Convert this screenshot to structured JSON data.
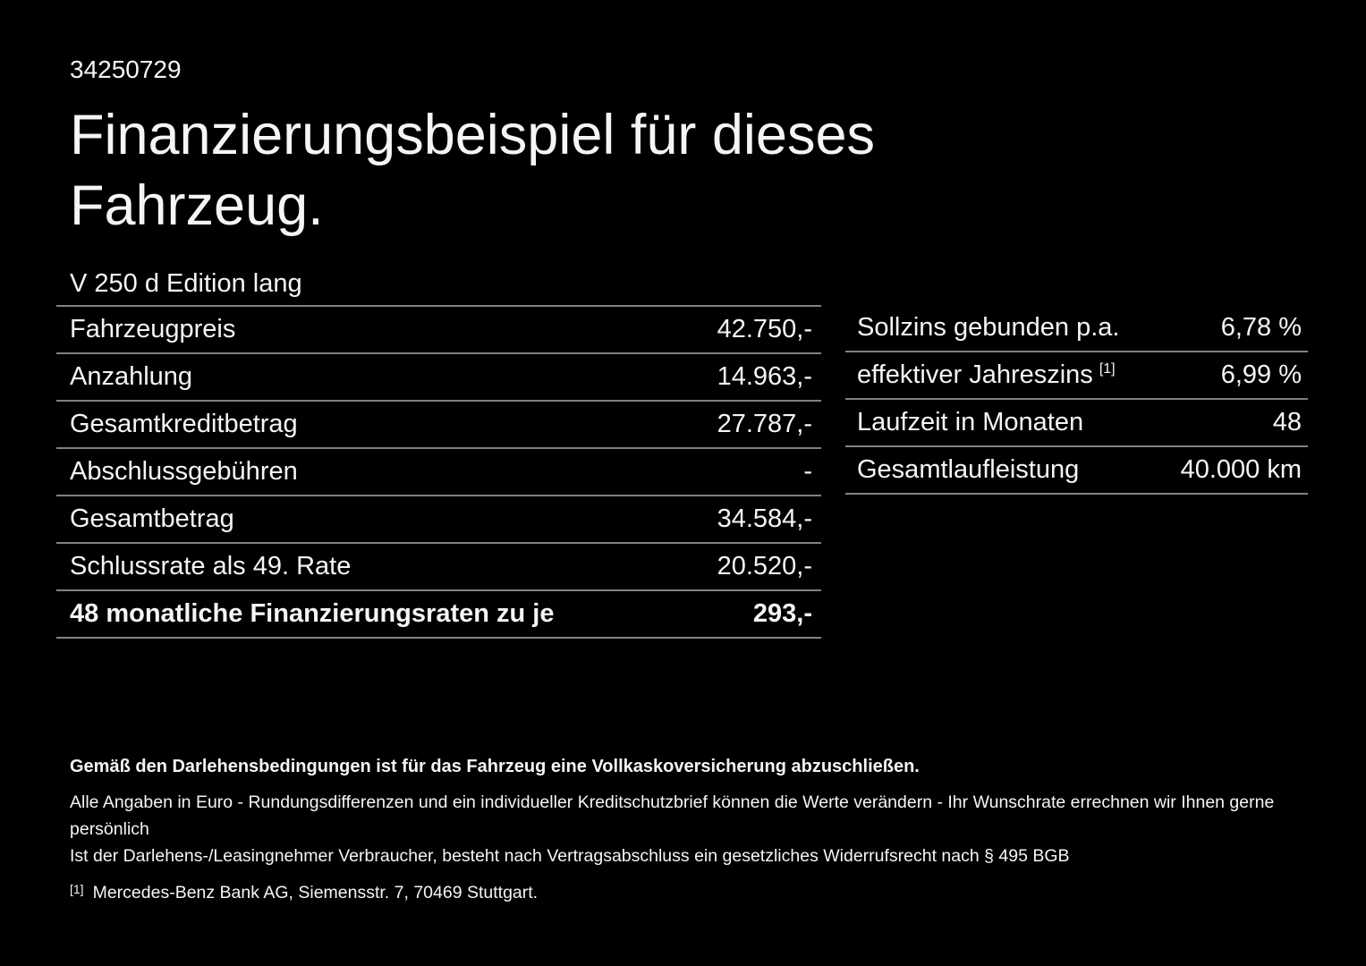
{
  "page": {
    "id_number": "34250729",
    "title_line1": "Finanzierungsbeispiel für dieses",
    "title_line2": "Fahrzeug.",
    "vehicle_name": "V 250 d Edition lang"
  },
  "left_table": {
    "rows": [
      {
        "label": "Fahrzeugpreis",
        "value": "42.750,-"
      },
      {
        "label": "Anzahlung",
        "value": "14.963,-"
      },
      {
        "label": "Gesamtkreditbetrag",
        "value": "27.787,-"
      },
      {
        "label": "Abschlussgebühren",
        "value": "-"
      },
      {
        "label": "Gesamtbetrag",
        "value": "34.584,-"
      },
      {
        "label": "Schlussrate als 49. Rate",
        "value": "20.520,-"
      },
      {
        "label": "48 monatliche Finanzierungsraten zu je",
        "value": "293,-"
      }
    ]
  },
  "right_table": {
    "rows": [
      {
        "label": "Sollzins gebunden p.a.",
        "value": "6,78 %"
      },
      {
        "label": "effektiver Jahreszins",
        "sup": "[1]",
        "value": "6,99 %"
      },
      {
        "label": "Laufzeit in Monaten",
        "value": "48"
      },
      {
        "label": "Gesamtlaufleistung",
        "value": "40.000 km"
      }
    ]
  },
  "footer": {
    "insurance_note": "Gemäß den Darlehensbedingungen ist für das Fahrzeug eine Vollkaskoversicherung abzuschließen.",
    "disclaimer_line1": "Alle Angaben in Euro - Rundungsdifferenzen und ein individueller Kreditschutzbrief können die Werte verändern - Ihr Wunschrate errechnen wir Ihnen gerne persönlich",
    "disclaimer_line2": "Ist der Darlehens-/Leasingnehmer Verbraucher, besteht nach Vertragsabschluss ein gesetzliches Widerrufsrecht nach § 495 BGB",
    "footnote_marker": "[1]",
    "footnote_text": "Mercedes-Benz Bank AG, Siemensstr. 7, 70469 Stuttgart."
  },
  "colors": {
    "background": "#000000",
    "text": "#f5f5f5",
    "divider": "#818181"
  }
}
